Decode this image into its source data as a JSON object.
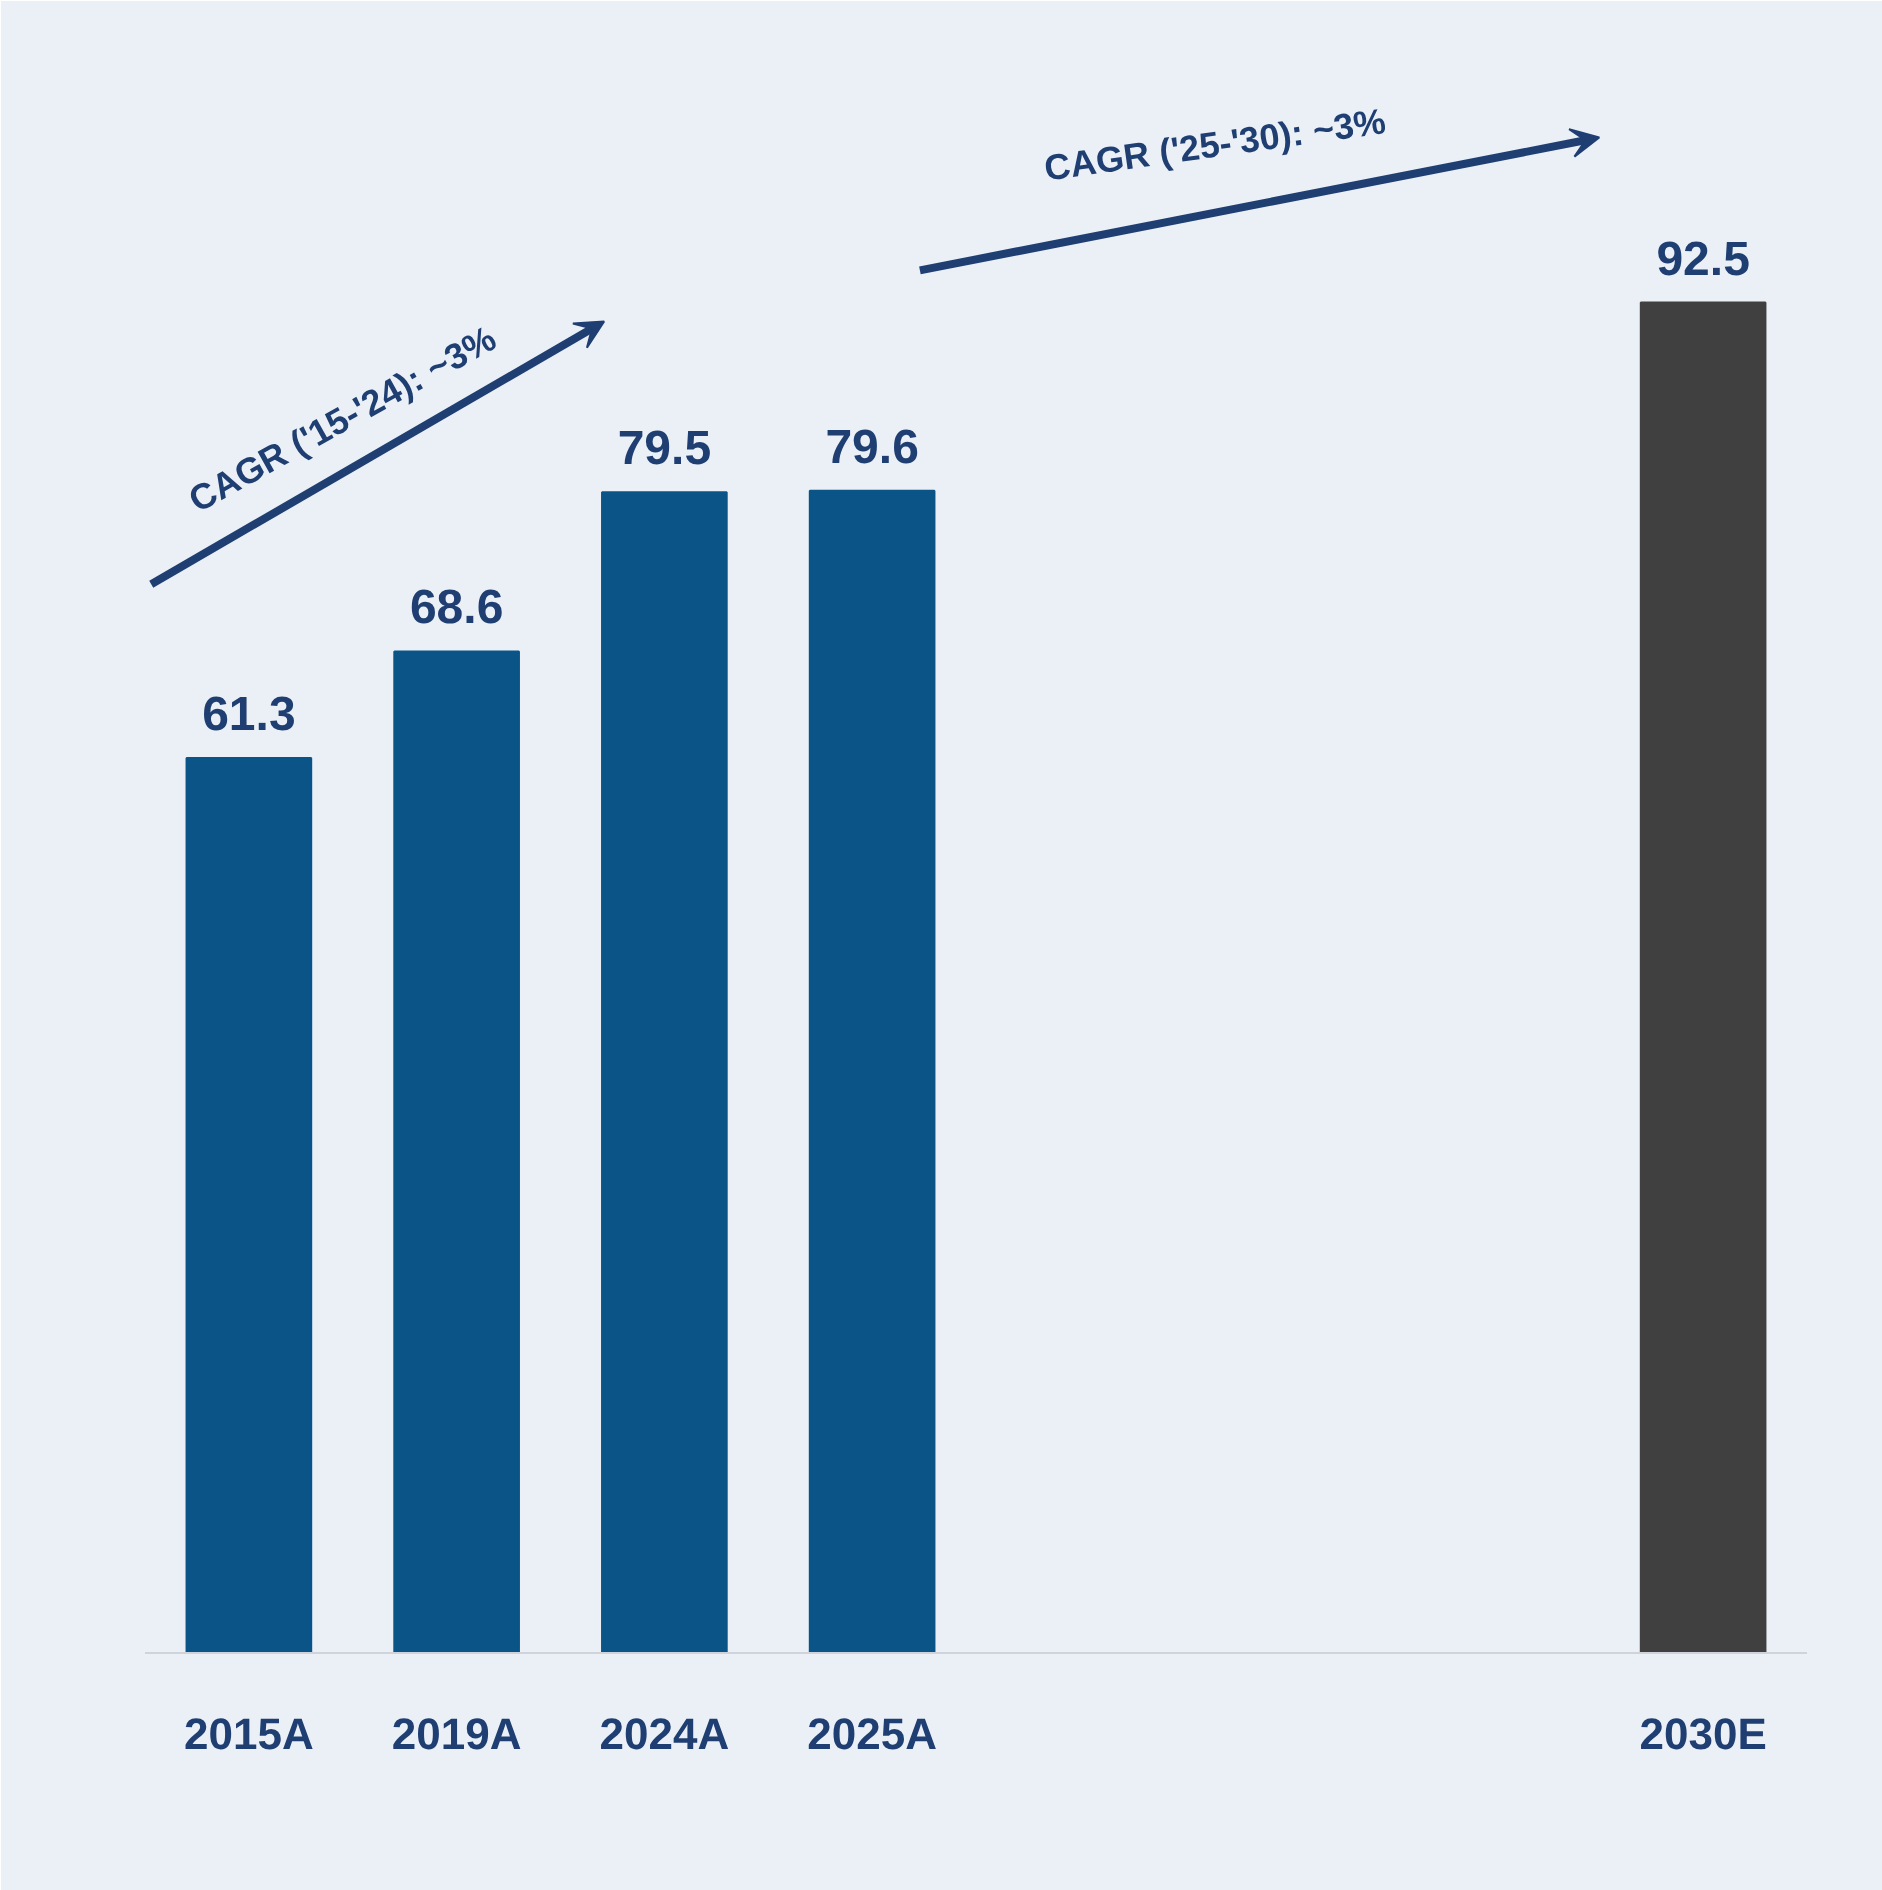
{
  "chart_data": {
    "type": "bar",
    "categories": [
      "2015A",
      "2019A",
      "2024A",
      "2025A",
      null,
      null,
      null,
      "2030E"
    ],
    "values": [
      61.3,
      68.6,
      79.5,
      79.6,
      null,
      null,
      null,
      92.5
    ],
    "colors": [
      "#0b5488",
      "#0b5488",
      "#0b5488",
      "#0b5488",
      "#0b5488",
      "#0b5488",
      "#0b5488",
      "#404040"
    ],
    "data_labels": true,
    "ylim": [
      0,
      110
    ],
    "tick_labels": "x",
    "grid": false,
    "annotations": [
      "CAGR ('15-'24): ~3%",
      "CAGR ('25-'30): ~3%"
    ]
  }
}
